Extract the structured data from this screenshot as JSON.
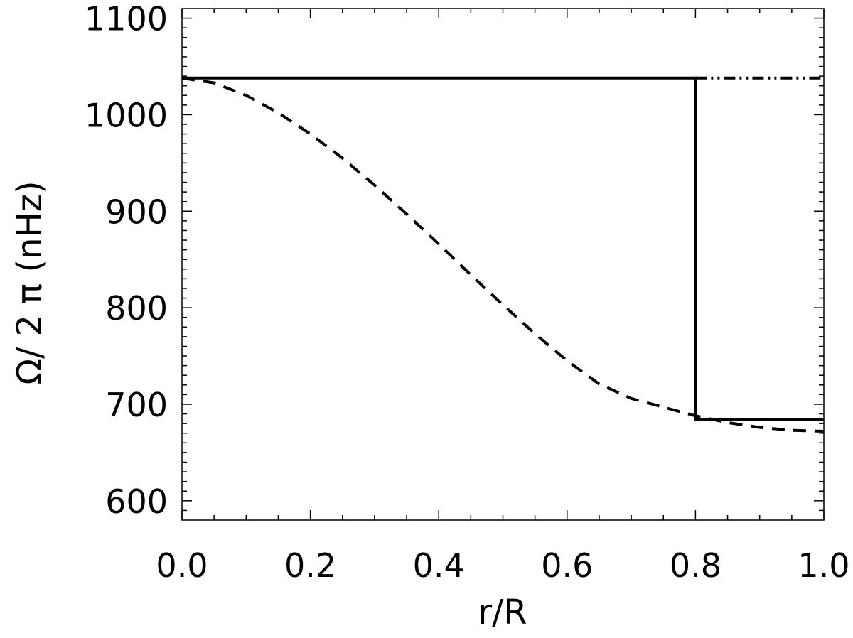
{
  "chart_data": {
    "type": "line",
    "title": "",
    "xlabel": "r/R",
    "ylabel": "Ω/ 2 π (nHz)",
    "xlim": [
      0.0,
      1.0
    ],
    "ylim": [
      580,
      1110
    ],
    "x_ticks": [
      0.0,
      0.2,
      0.4,
      0.6,
      0.8,
      1.0
    ],
    "x_tick_labels": [
      "0.0",
      "0.2",
      "0.4",
      "0.6",
      "0.8",
      "1.0"
    ],
    "y_ticks": [
      600,
      700,
      800,
      900,
      1000,
      1100
    ],
    "y_tick_labels": [
      "600",
      "700",
      "800",
      "900",
      "1000",
      "1100"
    ],
    "grid": false,
    "legend": "none",
    "series": [
      {
        "style": "solid",
        "x": [
          0.0,
          0.8,
          0.8,
          1.0
        ],
        "y": [
          1038,
          1038,
          684,
          684
        ]
      },
      {
        "style": "dash-dot-dot",
        "x": [
          0.8,
          1.0
        ],
        "y": [
          1038,
          1038
        ]
      },
      {
        "style": "dashed",
        "x": [
          0.0,
          0.05,
          0.1,
          0.15,
          0.2,
          0.25,
          0.3,
          0.35,
          0.4,
          0.45,
          0.5,
          0.55,
          0.6,
          0.65,
          0.7,
          0.75,
          0.8,
          0.85,
          0.9,
          0.95,
          1.0
        ],
        "y": [
          1038,
          1033,
          1020,
          1002,
          980,
          955,
          927,
          897,
          866,
          834,
          803,
          773,
          745,
          721,
          706,
          697,
          688,
          681,
          676,
          673,
          672
        ]
      }
    ]
  }
}
